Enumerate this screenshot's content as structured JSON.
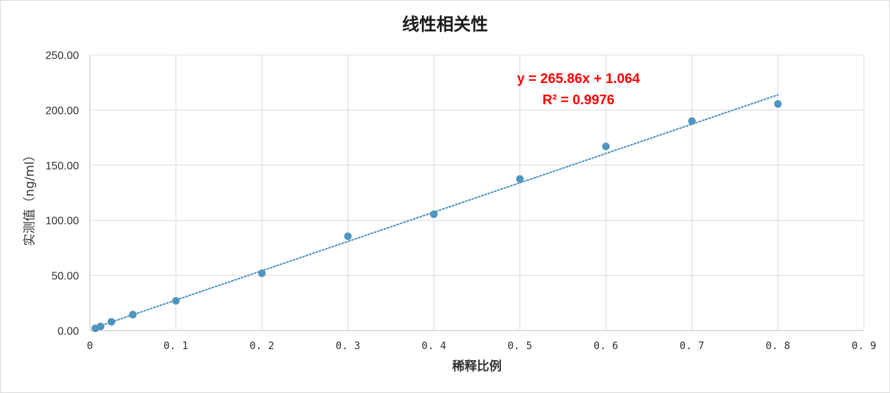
{
  "chart_data": {
    "type": "scatter",
    "title": "线性相关性",
    "xlabel": "稀释比例",
    "ylabel": "实测值（ng/ml）",
    "xlim": [
      0,
      0.9
    ],
    "ylim": [
      0,
      250
    ],
    "x_ticks": [
      "0",
      "0. 1",
      "0. 2",
      "0. 3",
      "0. 4",
      "0. 5",
      "0. 6",
      "0. 7",
      "0. 8",
      "0. 9"
    ],
    "x_tick_values": [
      0,
      0.1,
      0.2,
      0.3,
      0.4,
      0.5,
      0.6,
      0.7,
      0.8,
      0.9
    ],
    "y_ticks": [
      "0.00",
      "50.00",
      "100.00",
      "150.00",
      "200.00",
      "250.00"
    ],
    "y_tick_values": [
      0,
      50,
      100,
      150,
      200,
      250
    ],
    "grid": true,
    "legend": "none",
    "series": [
      {
        "x": [
          0.00625,
          0.0125,
          0.025,
          0.05,
          0.1,
          0.2,
          0.3,
          0.4,
          0.5,
          0.6,
          0.7,
          0.8
        ],
        "y": [
          2.0,
          3.8,
          7.9,
          14.5,
          27.0,
          52.0,
          85.5,
          105.5,
          137.5,
          167.0,
          190.0,
          205.5
        ],
        "color": "#4e95c0"
      }
    ],
    "trendline": {
      "type": "linear",
      "slope": 265.86,
      "intercept": 1.064,
      "x_range": [
        0.00625,
        0.8
      ],
      "color": "#4e95c0",
      "style": "dotted",
      "equation_text": "y = 265.86x + 1.064",
      "r2_text": "R² = 0.9976",
      "label_color": "#ff0000"
    }
  }
}
